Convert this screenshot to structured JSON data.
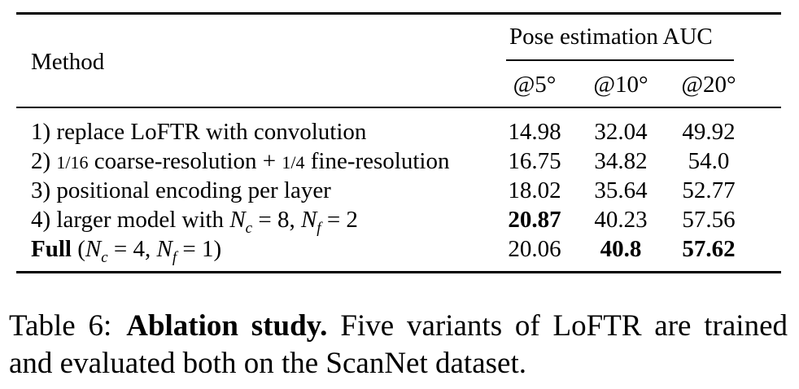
{
  "table": {
    "header": {
      "method": "Method",
      "group": "Pose estimation AUC",
      "sub": [
        "@5°",
        "@10°",
        "@20°"
      ]
    },
    "rows": [
      {
        "index": "1)",
        "text": "replace LoFTR with convolution",
        "values": [
          "14.98",
          "32.04",
          "49.92"
        ],
        "bold": [
          false,
          false,
          false
        ]
      },
      {
        "index": "2)",
        "frac1": "1/16",
        "text_a": "coarse-resolution +",
        "frac2": "1/4",
        "text_b": "fine-resolution",
        "values": [
          "16.75",
          "34.82",
          "54.0"
        ],
        "bold": [
          false,
          false,
          false
        ]
      },
      {
        "index": "3)",
        "text": "positional encoding per layer",
        "values": [
          "18.02",
          "35.64",
          "52.77"
        ],
        "bold": [
          false,
          false,
          false
        ]
      },
      {
        "index": "4)",
        "text": "larger model with",
        "math_nc": "N",
        "sub_c": "c",
        "eq1": " = 8, ",
        "math_nf": "N",
        "sub_f": "f",
        "eq2": " = 2",
        "values": [
          "20.87",
          "40.23",
          "57.56"
        ],
        "bold": [
          true,
          false,
          false
        ]
      },
      {
        "label": "Full",
        "open": " (",
        "math_nc": "N",
        "sub_c": "c",
        "eq1": " = 4, ",
        "math_nf": "N",
        "sub_f": "f",
        "eq2": " = 1)",
        "values": [
          "20.06",
          "40.8",
          "57.62"
        ],
        "bold": [
          false,
          true,
          true
        ]
      }
    ]
  },
  "caption": {
    "label": "Table 6:",
    "title": "Ablation study.",
    "text": "Five variants of LoFTR are trained and evaluated both on the ScanNet dataset."
  }
}
